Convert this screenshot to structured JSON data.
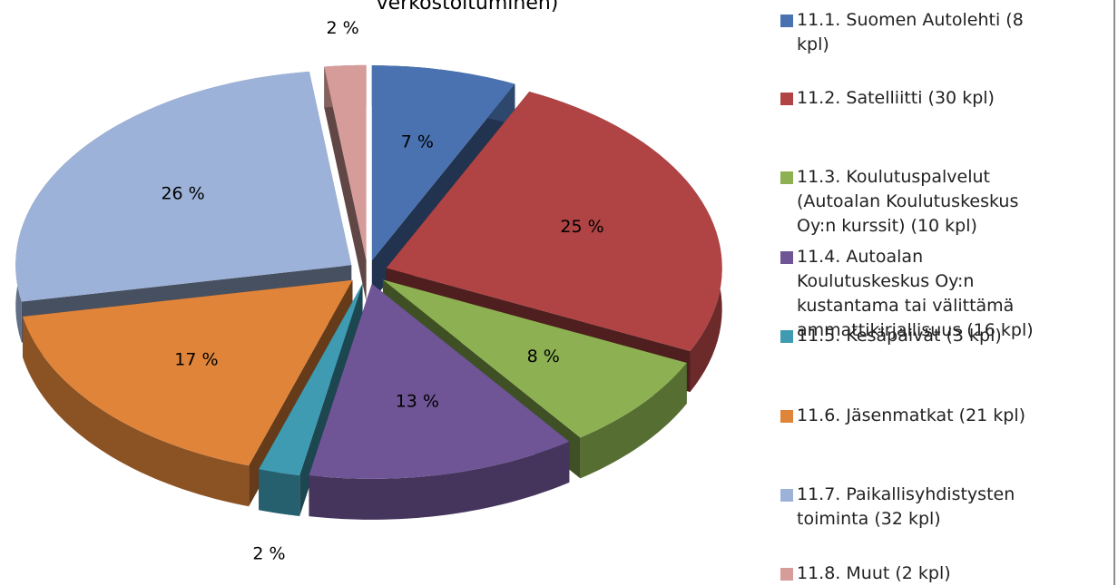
{
  "chart_data": {
    "type": "pie3d",
    "title": "verkostoituminen)",
    "series": [
      {
        "name": "11.1. Suomen Autolehti (8 kpl)",
        "color": "#4a72b0"
      },
      {
        "name": "11.2. Satelliitti (30 kpl)",
        "color": "#b04343"
      },
      {
        "name": "11.3. Koulutuspalvelut (Autoalan Koulutuskeskus Oy:n kurssit) (10 kpl)",
        "color": "#8db152"
      },
      {
        "name": "11.4. Autoalan Koulutuskeskus Oy:n kustantama tai välittämä ammattikirjallisuus (16 kpl)",
        "color": "#6f5596"
      },
      {
        "name": "11.5. Kesäpäivät (3 kpl)",
        "color": "#3e9bb2"
      },
      {
        "name": "11.6. Jäsenmatkat (21 kpl)",
        "color": "#e0843a"
      },
      {
        "name": "11.7. Paikallisyhdistysten toiminta (32 kpl)",
        "color": "#9db2d8"
      },
      {
        "name": "11.8. Muut (2 kpl)",
        "color": "#d69c9a"
      }
    ],
    "values": [
      7,
      25,
      8,
      13,
      2,
      17,
      26,
      2
    ],
    "value_labels": [
      "7 %",
      "25 %",
      "8 %",
      "13 %",
      "2 %",
      "17 %",
      "26 %",
      "2 %"
    ],
    "legend": "right"
  }
}
